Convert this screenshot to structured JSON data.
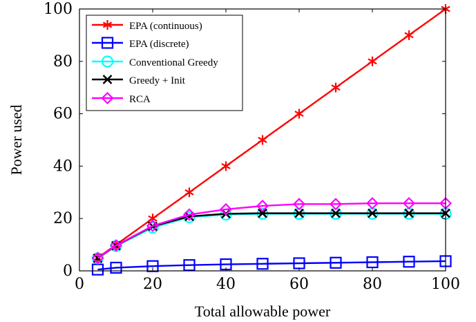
{
  "chart_data": {
    "type": "line",
    "xlabel": "Total allowable power",
    "ylabel": "Power used",
    "xlim": [
      0,
      100
    ],
    "ylim": [
      0,
      100
    ],
    "x_ticks": [
      "0",
      "20",
      "40",
      "60",
      "80",
      "100"
    ],
    "y_ticks": [
      "0",
      "20",
      "40",
      "60",
      "80",
      "100"
    ],
    "grid": false,
    "legend_position": "top-left",
    "x": [
      5,
      10,
      20,
      30,
      40,
      50,
      60,
      70,
      80,
      90,
      100
    ],
    "series": [
      {
        "name": "EPA (continuous)",
        "color": "#ff0000",
        "marker": "asterisk",
        "values": [
          5,
          10,
          20,
          30,
          40,
          50,
          60,
          70,
          80,
          90,
          100
        ]
      },
      {
        "name": "EPA (discrete)",
        "color": "#0000ff",
        "marker": "square",
        "values": [
          0.5,
          1.2,
          1.8,
          2.2,
          2.5,
          2.7,
          2.9,
          3.1,
          3.3,
          3.5,
          3.7
        ]
      },
      {
        "name": "Conventional Greedy",
        "color": "#00ffff",
        "marker": "circle",
        "values": [
          4.8,
          9.5,
          16.5,
          20.5,
          21.5,
          21.8,
          21.8,
          21.8,
          21.8,
          21.8,
          21.8
        ]
      },
      {
        "name": "Greedy + Init",
        "color": "#000000",
        "marker": "x",
        "values": [
          4.8,
          9.6,
          17.0,
          20.8,
          21.8,
          22.0,
          22.0,
          22.0,
          22.0,
          22.0,
          22.0
        ]
      },
      {
        "name": "RCA",
        "color": "#ff00ff",
        "marker": "diamond",
        "values": [
          4.9,
          9.7,
          17.2,
          21.5,
          23.5,
          24.8,
          25.5,
          25.5,
          25.8,
          25.8,
          25.8
        ]
      }
    ]
  }
}
